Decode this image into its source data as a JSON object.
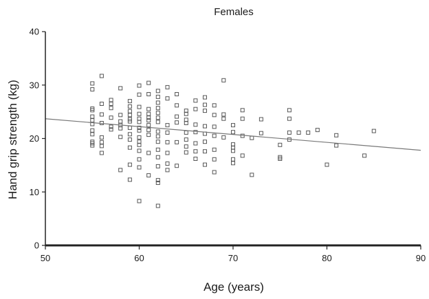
{
  "chart_data": {
    "type": "scatter",
    "title": "Females",
    "xlabel": "Age (years)",
    "ylabel": "Hand grip strength (kg)",
    "xlim": [
      50,
      90
    ],
    "ylim": [
      0,
      40
    ],
    "xticks": [
      "50",
      "60",
      "70",
      "80",
      "90"
    ],
    "yticks": [
      "0",
      "10",
      "20",
      "30",
      "40"
    ],
    "grid": false,
    "marker": "open-square",
    "colors": {
      "marker": "#555555",
      "axis": "#222222",
      "trend": "#777777"
    },
    "trend_line": {
      "x": [
        50,
        90
      ],
      "y": [
        23.7,
        17.8
      ]
    },
    "points": {
      "x": [
        55,
        55,
        55,
        55,
        55,
        55,
        55,
        55,
        55,
        55,
        55,
        55,
        56,
        56,
        56,
        56,
        56,
        56,
        56,
        56,
        57,
        57,
        57,
        57,
        57,
        57,
        58,
        58,
        58,
        58,
        58,
        58,
        58,
        59,
        59,
        59,
        59,
        59,
        59,
        59,
        59,
        59,
        59,
        59,
        59,
        60,
        60,
        60,
        60,
        60,
        60,
        60,
        60,
        60,
        60,
        60,
        60,
        60,
        60,
        60,
        61,
        61,
        61,
        61,
        61,
        61,
        61,
        61,
        61,
        61,
        61,
        62,
        62,
        62,
        62,
        62,
        62,
        62,
        62,
        62,
        62,
        62,
        62,
        62,
        62,
        62,
        62,
        63,
        63,
        63,
        63,
        63,
        63,
        63,
        63,
        64,
        64,
        64,
        64,
        64,
        64,
        65,
        65,
        65,
        65,
        65,
        65,
        65,
        65,
        66,
        66,
        66,
        66,
        66,
        66,
        66,
        67,
        67,
        67,
        67,
        67,
        67,
        67,
        67,
        68,
        68,
        68,
        68,
        68,
        68,
        68,
        69,
        69,
        69,
        69,
        70,
        70,
        70,
        70,
        70,
        70,
        70,
        71,
        71,
        71,
        71,
        72,
        72,
        73,
        73,
        75,
        75,
        75,
        76,
        76,
        76,
        76,
        77,
        78,
        79,
        80,
        81,
        81,
        84,
        85
      ],
      "y": [
        30.3,
        29.2,
        25.6,
        25.3,
        24.1,
        23.4,
        22.7,
        21.5,
        20.8,
        19.4,
        19.1,
        18.7,
        31.7,
        26.5,
        24.5,
        22.9,
        20.2,
        19.3,
        18.6,
        17.3,
        27.2,
        26.5,
        25.7,
        23.9,
        22.2,
        21.7,
        29.4,
        24.4,
        23.2,
        22.5,
        21.9,
        20.3,
        14.1,
        27,
        26,
        25.1,
        24.4,
        23.6,
        23.2,
        22,
        20.8,
        19.8,
        18.3,
        15.1,
        12.3,
        29.9,
        28.2,
        25.9,
        24.6,
        23.7,
        23.1,
        22,
        21.5,
        20.2,
        19.4,
        18.8,
        17.7,
        16.1,
        14.6,
        8.3,
        30.4,
        28.3,
        25.5,
        24.6,
        23.9,
        23.4,
        22.5,
        21.6,
        20.7,
        17.3,
        13.1,
        28.9,
        27.8,
        26.7,
        25.7,
        24.8,
        23.9,
        23.1,
        21.3,
        20.4,
        19.4,
        17.9,
        16.5,
        14.8,
        12.2,
        11.7,
        7.4,
        29.6,
        27.5,
        22.5,
        21.1,
        19.3,
        17.3,
        15.3,
        14.1,
        28.3,
        26.2,
        24.1,
        23,
        19.3,
        14.9,
        25.2,
        24.6,
        23.5,
        22.9,
        21.1,
        19.8,
        18.5,
        17.4,
        27.1,
        25.5,
        22.6,
        21.2,
        19.1,
        17.6,
        16.2,
        27.7,
        26.3,
        25.2,
        22.3,
        20.9,
        19.4,
        17.6,
        15.1,
        26.2,
        24.4,
        22.2,
        20.5,
        17.9,
        16.1,
        13.7,
        30.9,
        24.5,
        23.7,
        20.2,
        22.5,
        21.2,
        18.9,
        18.3,
        17.7,
        16.1,
        15.4,
        25.3,
        23.7,
        20.5,
        16.8,
        20.1,
        13.2,
        23.6,
        21,
        18.8,
        16.5,
        16.2,
        25.3,
        23.7,
        21.1,
        19.8,
        21.1,
        21.1,
        21.6,
        15.1,
        20.6,
        18.7,
        16.8,
        21.4
      ]
    }
  }
}
